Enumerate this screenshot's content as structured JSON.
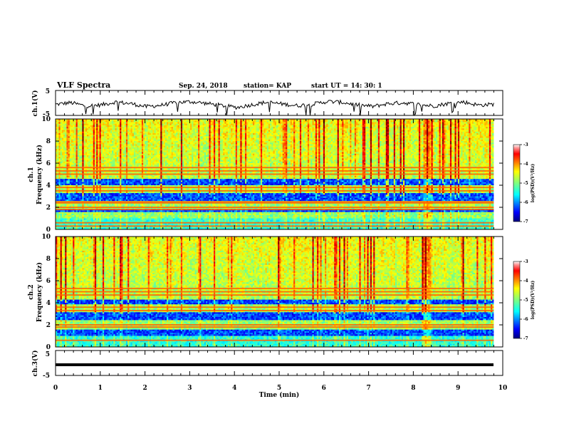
{
  "header": {
    "title": "VLF Spectra",
    "date": "Sep. 24, 2018",
    "station": "station= KAP",
    "start": "start  UT =   14: 30: 1"
  },
  "chart_data": [
    {
      "type": "line",
      "panel": "ch1-waveform",
      "ylabel": "ch.1(V)",
      "ylim": [
        -5,
        5
      ],
      "yticks": [
        "5",
        "-5"
      ],
      "xlim": [
        0,
        10
      ],
      "series": [
        {
          "values": [
            -0.6,
            0.1,
            -1.2,
            -0.8,
            0.4,
            -0.3,
            -1.5,
            -0.9,
            0.2,
            0.5,
            -0.2,
            -1.0,
            -1.8,
            -0.7,
            0.3,
            -0.4,
            -1.1,
            -0.5,
            0.6,
            0.2,
            -0.8,
            -1.4,
            -0.3,
            0.1,
            -0.6,
            -1.2,
            -0.2,
            0.4,
            -0.9,
            -0.5
          ]
        }
      ]
    },
    {
      "type": "heatmap",
      "panel": "ch1-spectrogram",
      "ylabel": "ch.1\nFrequency  (kHz)",
      "ylim": [
        0,
        10
      ],
      "yticks": [
        "0",
        "2",
        "4",
        "6",
        "8",
        "10"
      ],
      "xlim": [
        0,
        10
      ],
      "colorbar": {
        "label": "log(PSD)(V²/Hz)",
        "range": [
          -7,
          -3
        ],
        "ticks": [
          "-3",
          "-4",
          "-5",
          "-6",
          "-7"
        ]
      },
      "bands_khz": [
        0.3,
        0.6,
        1.8,
        2.0,
        2.4,
        2.5,
        3.5,
        3.8,
        5.0,
        5.3,
        5.6
      ],
      "dark_bands_khz": [
        [
          2.6,
          3.3
        ],
        [
          4.0,
          4.6
        ],
        [
          1.6,
          1.9
        ]
      ],
      "burst_min": 8.3
    },
    {
      "type": "heatmap",
      "panel": "ch2-spectrogram",
      "ylabel": "ch.2\nFrequency  (kHz)",
      "ylim": [
        0,
        10
      ],
      "yticks": [
        "0",
        "2",
        "4",
        "6",
        "8",
        "10"
      ],
      "xlim": [
        0,
        10
      ],
      "colorbar": {
        "label": "log(PSD)(V²/Hz)",
        "range": [
          -7,
          -3
        ],
        "ticks": [
          "-3",
          "-4",
          "-5",
          "-6",
          "-7"
        ]
      },
      "bands_khz": [
        0.6,
        1.8,
        2.0,
        3.3,
        3.6,
        4.7,
        5.0,
        5.3
      ],
      "dark_bands_khz": [
        [
          2.4,
          3.2
        ],
        [
          3.8,
          4.3
        ],
        [
          1.0,
          1.5
        ]
      ],
      "burst_min": 8.3
    },
    {
      "type": "line",
      "panel": "ch3-waveform",
      "ylabel": "ch.3(V)",
      "ylim": [
        -5,
        5
      ],
      "yticks": [
        "5",
        "-5"
      ],
      "xlim": [
        0,
        10
      ],
      "series": [
        {
          "values": [
            0,
            0
          ]
        }
      ]
    }
  ],
  "x_axis": {
    "label": "Time  (min)",
    "ticks": [
      "0",
      "1",
      "2",
      "3",
      "4",
      "5",
      "6",
      "7",
      "8",
      "9",
      "10"
    ]
  },
  "colors": {
    "axis": "#000000",
    "background": "#ffffff"
  }
}
